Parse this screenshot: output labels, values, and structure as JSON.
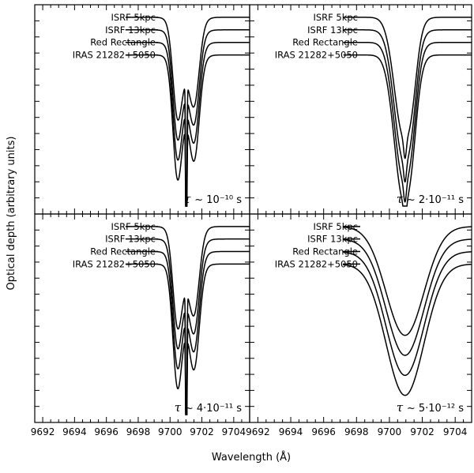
{
  "figure": {
    "ylabel": "Optical depth (arbitrary units)",
    "xlabel": "Wavelength (Å)"
  },
  "chart_data": [
    {
      "type": "line",
      "panel": "top-left",
      "annotation": {
        "symbol": "τ",
        "approx": "~",
        "text": "10⁻¹⁰ s"
      },
      "profile": "narrow-split",
      "xlim": [
        9691.5,
        9705
      ],
      "x_ticks": [
        9692,
        9694,
        9696,
        9698,
        9700,
        9702,
        9704
      ],
      "series": [
        {
          "name": "ISRF 5kpc",
          "baseline": 0.94
        },
        {
          "name": "ISRF 13kpc",
          "baseline": 0.88
        },
        {
          "name": "Red Rectangle",
          "baseline": 0.82
        },
        {
          "name": "IRAS 21282+5050",
          "baseline": 0.76
        }
      ]
    },
    {
      "type": "line",
      "panel": "top-right",
      "annotation": {
        "symbol": "τ",
        "approx": "~",
        "text": "2·10⁻¹¹ s"
      },
      "profile": "medium",
      "xlim": [
        9691.5,
        9705
      ],
      "x_ticks": [
        9692,
        9694,
        9696,
        9698,
        9700,
        9702,
        9704
      ],
      "series": [
        {
          "name": "ISRF 5kpc",
          "baseline": 0.94
        },
        {
          "name": "ISRF 13kpc",
          "baseline": 0.88
        },
        {
          "name": "Red Rectangle",
          "baseline": 0.82
        },
        {
          "name": "IRAS 21282+5050",
          "baseline": 0.76
        }
      ]
    },
    {
      "type": "line",
      "panel": "bottom-left",
      "annotation": {
        "symbol": "τ",
        "approx": "~",
        "text": "4·10⁻¹¹ s"
      },
      "profile": "narrow-split",
      "xlim": [
        9691.5,
        9705
      ],
      "x_ticks": [
        9692,
        9694,
        9696,
        9698,
        9700,
        9702,
        9704
      ],
      "series": [
        {
          "name": "ISRF 5kpc",
          "baseline": 0.94
        },
        {
          "name": "ISRF 13kpc",
          "baseline": 0.88
        },
        {
          "name": "Red Rectangle",
          "baseline": 0.82
        },
        {
          "name": "IRAS 21282+5050",
          "baseline": 0.76
        }
      ]
    },
    {
      "type": "line",
      "panel": "bottom-right",
      "annotation": {
        "symbol": "τ",
        "approx": "~",
        "text": "5·10⁻¹² s"
      },
      "profile": "broad",
      "xlim": [
        9691.5,
        9705
      ],
      "x_ticks": [
        9692,
        9694,
        9696,
        9698,
        9700,
        9702,
        9704
      ],
      "series": [
        {
          "name": "ISRF 5kpc",
          "baseline": 0.94
        },
        {
          "name": "ISRF 13kpc",
          "baseline": 0.88
        },
        {
          "name": "Red Rectangle",
          "baseline": 0.82
        },
        {
          "name": "IRAS 21282+5050",
          "baseline": 0.76
        }
      ]
    }
  ]
}
